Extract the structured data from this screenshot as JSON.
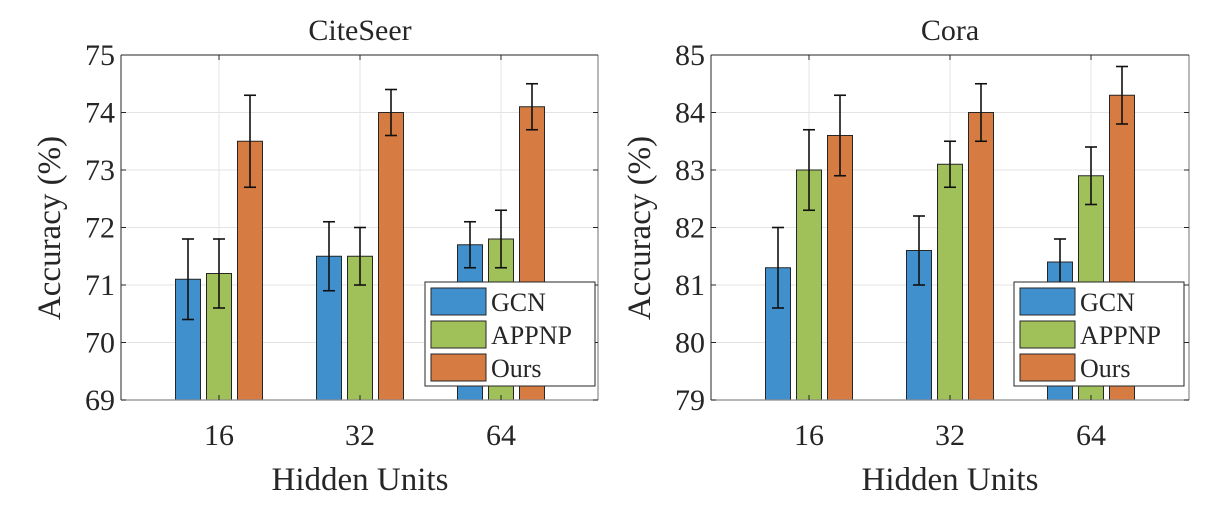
{
  "colors": {
    "GCN": "#4190CE",
    "APPNP": "#A0C15A",
    "Ours": "#D67B42",
    "grid": "#e3e3e3",
    "axis": "#262626"
  },
  "chart_data": [
    {
      "type": "bar",
      "title": "CiteSeer",
      "xlabel": "Hidden Units",
      "ylabel": "Accuracy (%)",
      "categories": [
        "16",
        "32",
        "64"
      ],
      "ylim": [
        69,
        75
      ],
      "yticks": [
        "69",
        "70",
        "71",
        "72",
        "73",
        "74",
        "75"
      ],
      "grid": true,
      "legend_position": "bottom-right",
      "series": [
        {
          "name": "GCN",
          "values": [
            71.1,
            71.5,
            71.7
          ],
          "errors": [
            0.7,
            0.6,
            0.4
          ]
        },
        {
          "name": "APPNP",
          "values": [
            71.2,
            71.5,
            71.8
          ],
          "errors": [
            0.6,
            0.5,
            0.5
          ]
        },
        {
          "name": "Ours",
          "values": [
            73.5,
            74.0,
            74.1
          ],
          "errors": [
            0.8,
            0.4,
            0.4
          ]
        }
      ]
    },
    {
      "type": "bar",
      "title": "Cora",
      "xlabel": "Hidden Units",
      "ylabel": "Accuracy (%)",
      "categories": [
        "16",
        "32",
        "64"
      ],
      "ylim": [
        79,
        85
      ],
      "yticks": [
        "79",
        "80",
        "81",
        "82",
        "83",
        "84",
        "85"
      ],
      "grid": true,
      "legend_position": "bottom-right",
      "series": [
        {
          "name": "GCN",
          "values": [
            81.3,
            81.6,
            81.4
          ],
          "errors": [
            0.7,
            0.6,
            0.4
          ]
        },
        {
          "name": "APPNP",
          "values": [
            83.0,
            83.1,
            82.9
          ],
          "errors": [
            0.7,
            0.4,
            0.5
          ]
        },
        {
          "name": "Ours",
          "values": [
            83.6,
            84.0,
            84.3
          ],
          "errors": [
            0.7,
            0.5,
            0.5
          ]
        }
      ]
    }
  ]
}
